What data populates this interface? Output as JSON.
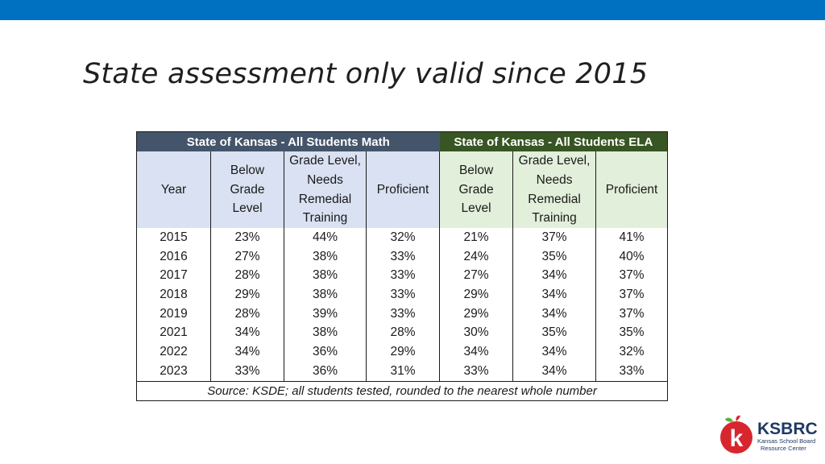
{
  "title": "State assessment only valid since 2015",
  "table": {
    "math_header": "State of Kansas - All Students Math",
    "ela_header": "State of Kansas - All Students   ELA",
    "columns": {
      "year": [
        "Year"
      ],
      "below": [
        "Below",
        "Grade",
        "Level"
      ],
      "remedial": [
        "Grade Level,",
        "Needs",
        "Remedial",
        "Training"
      ],
      "proficient": [
        "Proficient"
      ]
    },
    "rows": [
      {
        "year": "2015",
        "math_below": "23%",
        "math_remedial": "44%",
        "math_proficient": "32%",
        "ela_below": "21%",
        "ela_remedial": "37%",
        "ela_proficient": "41%"
      },
      {
        "year": "2016",
        "math_below": "27%",
        "math_remedial": "38%",
        "math_proficient": "33%",
        "ela_below": "24%",
        "ela_remedial": "35%",
        "ela_proficient": "40%"
      },
      {
        "year": "2017",
        "math_below": "28%",
        "math_remedial": "38%",
        "math_proficient": "33%",
        "ela_below": "27%",
        "ela_remedial": "34%",
        "ela_proficient": "37%"
      },
      {
        "year": "2018",
        "math_below": "29%",
        "math_remedial": "38%",
        "math_proficient": "33%",
        "ela_below": "29%",
        "ela_remedial": "34%",
        "ela_proficient": "37%"
      },
      {
        "year": "2019",
        "math_below": "28%",
        "math_remedial": "39%",
        "math_proficient": "33%",
        "ela_below": "29%",
        "ela_remedial": "34%",
        "ela_proficient": "37%"
      },
      {
        "year": "2021",
        "math_below": "34%",
        "math_remedial": "38%",
        "math_proficient": "28%",
        "ela_below": "30%",
        "ela_remedial": "35%",
        "ela_proficient": "35%"
      },
      {
        "year": "2022",
        "math_below": "34%",
        "math_remedial": "36%",
        "math_proficient": "29%",
        "ela_below": "34%",
        "ela_remedial": "34%",
        "ela_proficient": "32%"
      },
      {
        "year": "2023",
        "math_below": "33%",
        "math_remedial": "36%",
        "math_proficient": "31%",
        "ela_below": "33%",
        "ela_remedial": "34%",
        "ela_proficient": "33%"
      }
    ],
    "source": "Source: KSDE; all students tested, rounded to the nearest whole number"
  },
  "logo": {
    "mark": "k",
    "name": "KSBRC",
    "subtitle_line1": "Kansas School Board",
    "subtitle_line2": "Resource Center"
  },
  "colors": {
    "topbar": "#0070c0",
    "math_header": "#44546a",
    "ela_header": "#375623",
    "math_subheader": "#d9e1f2",
    "ela_subheader": "#e2efda",
    "logo_red": "#d8262e",
    "logo_blue": "#1f3864"
  }
}
